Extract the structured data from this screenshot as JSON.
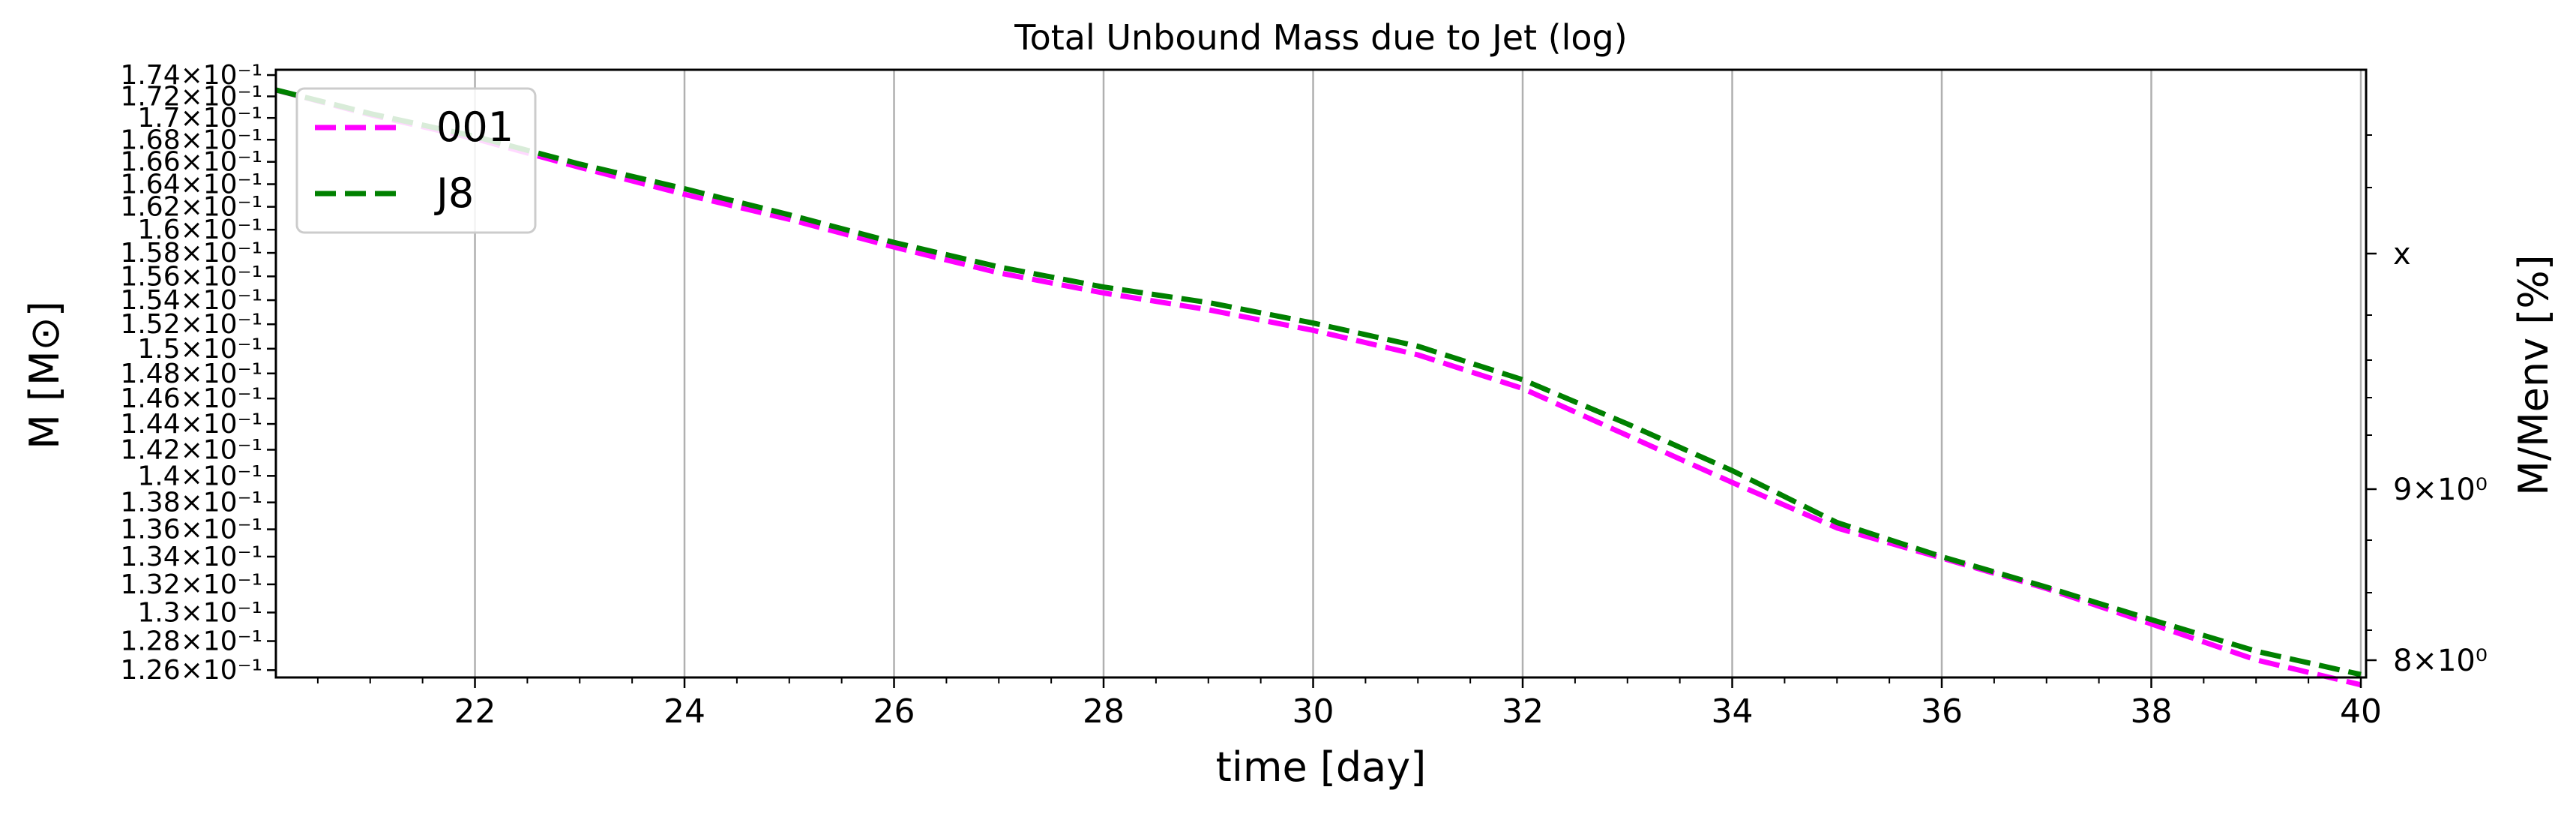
{
  "chart_data": {
    "type": "line",
    "title": "Total Unbound Mass due to Jet (log)",
    "xlabel": "time [day]",
    "ylabel": "M [M⊙]",
    "ylabel_right": "M/Menv [%]",
    "xlim": [
      20.1,
      40.05
    ],
    "ylim": [
      0.1255,
      0.1745
    ],
    "yscale": "log",
    "grid": "x-major",
    "legend": "upper-left",
    "x_ticks": [
      "22",
      "24",
      "26",
      "28",
      "30",
      "32",
      "34",
      "36",
      "38",
      "40"
    ],
    "y_ticks": [
      "1.74×10⁻¹",
      "1.72×10⁻¹",
      "1.7×10⁻¹",
      "1.68×10⁻¹",
      "1.66×10⁻¹",
      "1.64×10⁻¹",
      "1.62×10⁻¹",
      "1.6×10⁻¹",
      "1.58×10⁻¹",
      "1.56×10⁻¹",
      "1.54×10⁻¹",
      "1.52×10⁻¹",
      "1.5×10⁻¹",
      "1.48×10⁻¹",
      "1.46×10⁻¹",
      "1.44×10⁻¹",
      "1.42×10⁻¹",
      "1.4×10⁻¹",
      "1.38×10⁻¹",
      "1.36×10⁻¹",
      "1.34×10⁻¹",
      "1.32×10⁻¹",
      "1.3×10⁻¹",
      "1.28×10⁻¹",
      "1.26×10⁻¹"
    ],
    "y_right_ticks": [
      "x",
      "9×10⁰",
      "8×10⁰"
    ],
    "series": [
      {
        "name": "001",
        "color": "#ff00ff",
        "style": "dashed",
        "x": [
          20.1,
          21,
          22,
          23,
          24,
          25,
          26,
          27,
          28,
          29,
          30,
          31,
          32,
          33,
          34,
          35,
          36,
          37,
          38,
          39,
          40
        ],
        "y": [
          0.1726,
          0.1703,
          0.1681,
          0.1655,
          0.1631,
          0.1609,
          0.1585,
          0.1563,
          0.1546,
          0.1532,
          0.1515,
          0.1495,
          0.1468,
          0.1431,
          0.1395,
          0.1361,
          0.1339,
          0.1317,
          0.1292,
          0.1267,
          0.125
        ]
      },
      {
        "name": "J8",
        "color": "#008000",
        "style": "dashed",
        "x": [
          20.1,
          21,
          22,
          23,
          24,
          25,
          26,
          27,
          28,
          29,
          30,
          31,
          32,
          33,
          34,
          35,
          36,
          37,
          38,
          39,
          40
        ],
        "y": [
          0.1726,
          0.1704,
          0.1683,
          0.1658,
          0.1636,
          0.1613,
          0.1589,
          0.1568,
          0.1551,
          0.1538,
          0.1521,
          0.1502,
          0.1475,
          0.144,
          0.1404,
          0.1365,
          0.134,
          0.1318,
          0.1295,
          0.1273,
          0.1257
        ]
      }
    ]
  }
}
